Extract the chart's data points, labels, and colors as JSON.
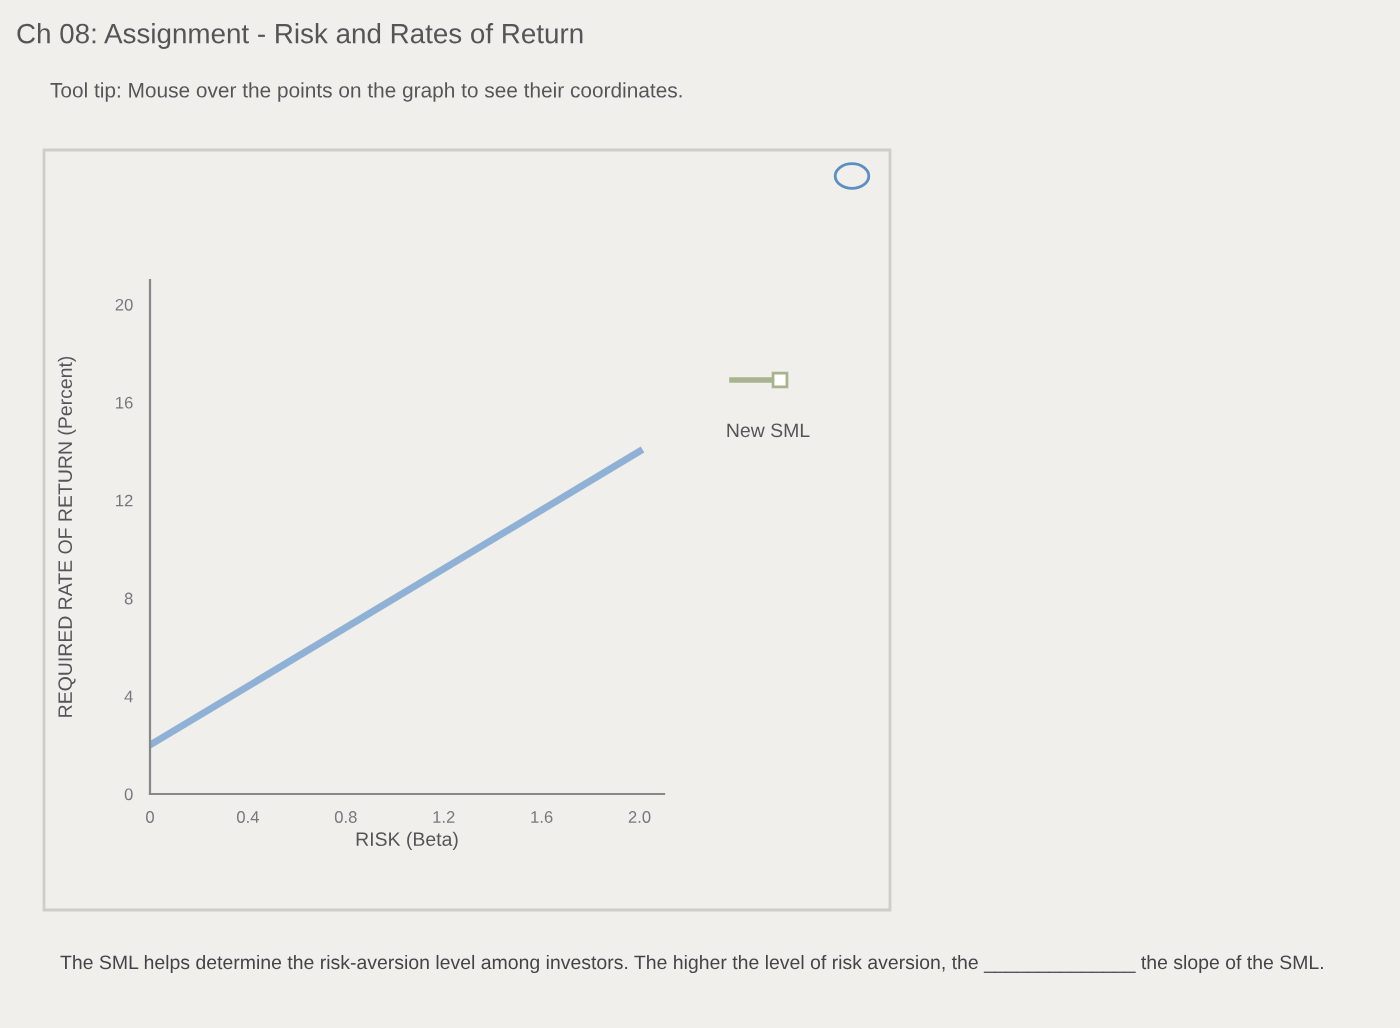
{
  "chart_data": {
    "type": "line",
    "title": "Ch 08: Assignment - Risk and Rates of Return",
    "subtitle": "Tool tip: Mouse over the points on the graph to see their coordinates.",
    "xlabel": "RISK (Beta)",
    "ylabel": "REQUIRED RATE OF RETURN (Percent)",
    "x": [
      0,
      2.0
    ],
    "series": [
      {
        "color": "#8fb1d6",
        "values": [
          2,
          14
        ]
      }
    ],
    "xlim": [
      0,
      2.1
    ],
    "ylim": [
      0,
      21
    ],
    "xticks": [
      0,
      0.4,
      0.8,
      1.2,
      1.6,
      {
        "value": 2.0,
        "label": "2.0"
      }
    ],
    "yticks": [
      0,
      4,
      8,
      12,
      16,
      20
    ],
    "grid": false,
    "marker": "none",
    "line_style": "solid",
    "annotations": [
      "New SML",
      "The SML helps determine the risk-aversion level among investors. The higher the level of risk aversion, the ______________ the slope of the SML."
    ]
  }
}
